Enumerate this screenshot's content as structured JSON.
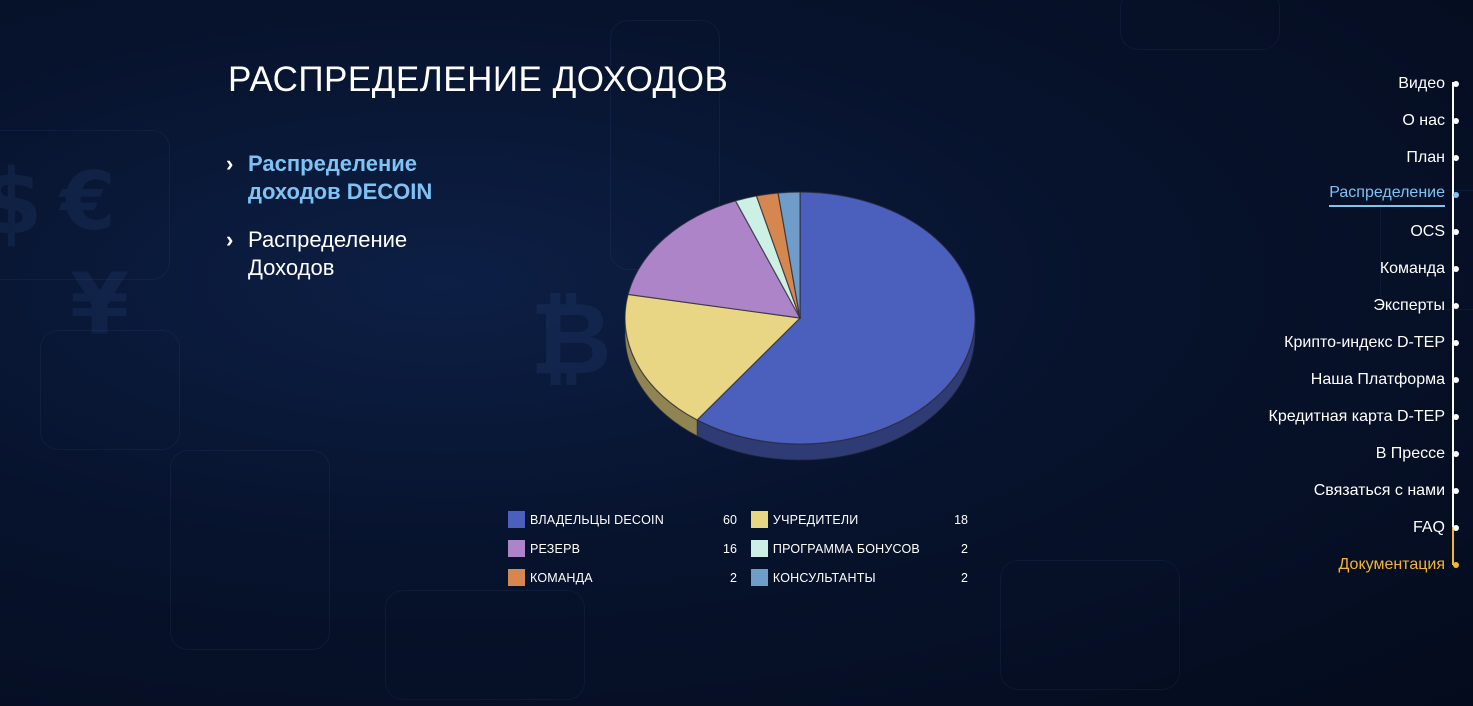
{
  "page": {
    "title": "РАСПРЕДЕЛЕНИЕ ДОХОДОВ"
  },
  "side_tabs": [
    {
      "label": "Распределение доходов DECOIN",
      "active": true
    },
    {
      "label": "Распределение Доходов",
      "active": false
    }
  ],
  "chart_data": {
    "type": "pie",
    "title": "",
    "categories": [
      "ВЛАДЕЛЬЦЫ DECOIN",
      "УЧРЕДИТЕЛИ",
      "РЕЗЕРВ",
      "ПРОГРАММА БОНУСОВ",
      "КОМАНДА",
      "КОНСУЛЬТАНТЫ"
    ],
    "values": [
      60,
      18,
      16,
      2,
      2,
      2
    ],
    "colors": [
      "#4b5fbd",
      "#e8d685",
      "#ad84c8",
      "#cdf0e4",
      "#d6864f",
      "#6f9cc8"
    ],
    "legend_position": "bottom"
  },
  "legend": [
    {
      "name": "ВЛАДЕЛЬЦЫ DECOIN",
      "value": "60",
      "color": "#4b5fbd"
    },
    {
      "name": "УЧРЕДИТЕЛИ",
      "value": "18",
      "color": "#e8d685"
    },
    {
      "name": "РЕЗЕРВ",
      "value": "16",
      "color": "#ad84c8"
    },
    {
      "name": "ПРОГРАММА БОНУСОВ",
      "value": "2",
      "color": "#cdf0e4"
    },
    {
      "name": "КОМАНДА",
      "value": "2",
      "color": "#d6864f"
    },
    {
      "name": "КОНСУЛЬТАНТЫ",
      "value": "2",
      "color": "#6f9cc8"
    }
  ],
  "nav": {
    "items": [
      {
        "label": "Видео"
      },
      {
        "label": "О нас"
      },
      {
        "label": "План"
      },
      {
        "label": "Распределение",
        "active": true
      },
      {
        "label": "OCS"
      },
      {
        "label": "Команда"
      },
      {
        "label": "Эксперты"
      },
      {
        "label": "Крипто-индекс D-TEP"
      },
      {
        "label": "Наша Платформа"
      },
      {
        "label": "Кредитная карта D-TEP"
      },
      {
        "label": "В Прессе"
      },
      {
        "label": "Связаться с нами"
      },
      {
        "label": "FAQ"
      },
      {
        "label": "Документация",
        "highlight": true
      }
    ]
  },
  "colors": {
    "accent_blue": "#7fc3f5",
    "accent_gold": "#f3b62f",
    "background": "#07132d"
  }
}
